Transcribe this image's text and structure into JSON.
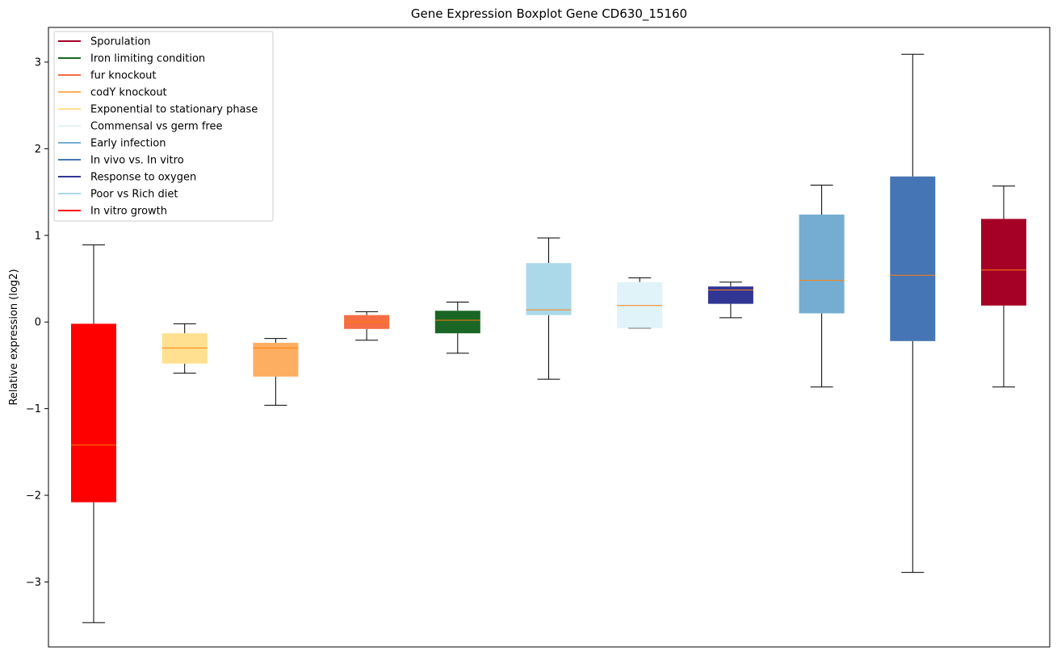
{
  "chart_data": {
    "type": "boxplot",
    "title": "Gene Expression Boxplot Gene CD630_15160",
    "xlabel": "",
    "ylabel": "Relative expression (log2)",
    "ylim": [
      -3.75,
      3.4
    ],
    "yticks": [
      -3,
      -2,
      -1,
      0,
      1,
      2,
      3
    ],
    "ytick_labels": [
      "−3",
      "−2",
      "−1",
      "0",
      "1",
      "2",
      "3"
    ],
    "median_color": "#ff7f0e",
    "legend": {
      "location": "top-left",
      "entries": [
        {
          "label": "Sporulation",
          "color": "#a50026"
        },
        {
          "label": "Iron limiting condition",
          "color": "#1a6625"
        },
        {
          "label": "fur knockout",
          "color": "#f46d43"
        },
        {
          "label": "codY knockout",
          "color": "#fdae61"
        },
        {
          "label": "Exponential to stationary phase",
          "color": "#fee090"
        },
        {
          "label": "Commensal vs germ free",
          "color": "#e0f3f8"
        },
        {
          "label": "Early infection",
          "color": "#74add1"
        },
        {
          "label": "In vivo vs. In vitro",
          "color": "#4575b4"
        },
        {
          "label": "Response to oxygen",
          "color": "#313695"
        },
        {
          "label": "Poor vs Rich diet",
          "color": "#abd9e9"
        },
        {
          "label": "In vitro growth",
          "color": "#ff0000"
        }
      ]
    },
    "boxes": [
      {
        "group": "In vitro growth",
        "color": "#ff0000",
        "whisker_low": -3.47,
        "q1": -2.08,
        "median": -1.42,
        "q3": -0.02,
        "whisker_high": 0.89
      },
      {
        "group": "Exponential to stationary phase",
        "color": "#fee090",
        "whisker_low": -0.59,
        "q1": -0.48,
        "median": -0.3,
        "q3": -0.13,
        "whisker_high": -0.02
      },
      {
        "group": "codY knockout",
        "color": "#fdae61",
        "whisker_low": -0.96,
        "q1": -0.63,
        "median": -0.3,
        "q3": -0.24,
        "whisker_high": -0.19
      },
      {
        "group": "fur knockout",
        "color": "#f46d43",
        "whisker_low": -0.21,
        "q1": -0.08,
        "median": 0.0,
        "q3": 0.08,
        "whisker_high": 0.12
      },
      {
        "group": "Iron limiting condition",
        "color": "#1a6625",
        "whisker_low": -0.36,
        "q1": -0.13,
        "median": 0.02,
        "q3": 0.13,
        "whisker_high": 0.23
      },
      {
        "group": "Poor vs Rich diet",
        "color": "#abd9e9",
        "whisker_low": -0.66,
        "q1": 0.08,
        "median": 0.14,
        "q3": 0.68,
        "whisker_high": 0.97
      },
      {
        "group": "Commensal vs germ free",
        "color": "#e0f3f8",
        "whisker_low": -0.07,
        "q1": -0.07,
        "median": 0.19,
        "q3": 0.46,
        "whisker_high": 0.51
      },
      {
        "group": "Response to oxygen",
        "color": "#313695",
        "whisker_low": 0.05,
        "q1": 0.21,
        "median": 0.37,
        "q3": 0.41,
        "whisker_high": 0.46
      },
      {
        "group": "Early infection",
        "color": "#74add1",
        "whisker_low": -0.75,
        "q1": 0.1,
        "median": 0.48,
        "q3": 1.24,
        "whisker_high": 1.58
      },
      {
        "group": "In vivo vs. In vitro",
        "color": "#4575b4",
        "whisker_low": -2.89,
        "q1": -0.22,
        "median": 0.54,
        "q3": 1.68,
        "whisker_high": 3.09
      },
      {
        "group": "Sporulation",
        "color": "#a50026",
        "whisker_low": -0.75,
        "q1": 0.19,
        "median": 0.6,
        "q3": 1.19,
        "whisker_high": 1.57
      }
    ]
  }
}
